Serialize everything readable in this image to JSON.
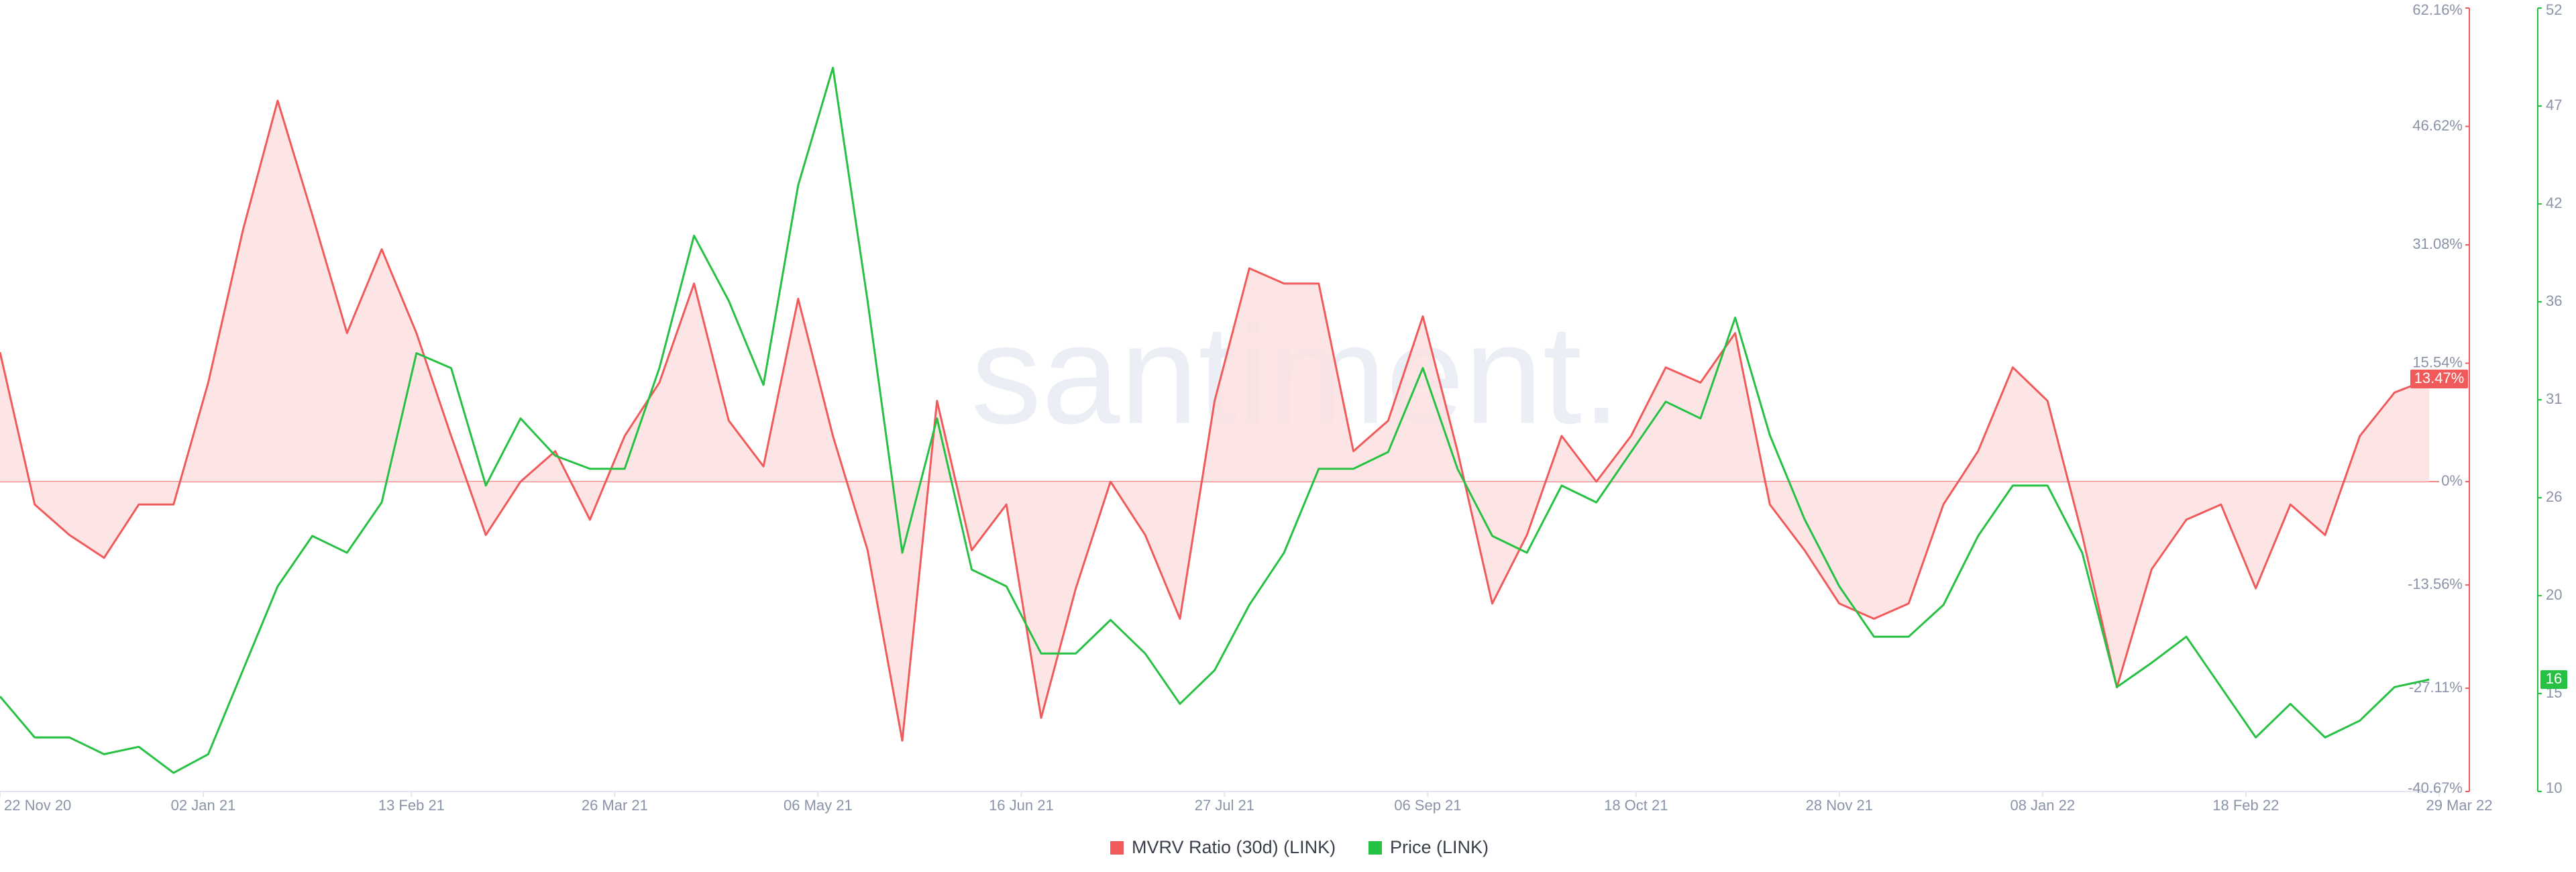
{
  "chart_data": {
    "type": "line",
    "watermark": "santiment.",
    "x": [
      "2020-11-22",
      "2020-11-29",
      "2020-12-06",
      "2020-12-13",
      "2020-12-20",
      "2020-12-27",
      "2021-01-03",
      "2021-01-10",
      "2021-01-17",
      "2021-01-24",
      "2021-01-31",
      "2021-02-07",
      "2021-02-14",
      "2021-02-21",
      "2021-02-28",
      "2021-03-07",
      "2021-03-14",
      "2021-03-21",
      "2021-03-28",
      "2021-04-04",
      "2021-04-11",
      "2021-04-18",
      "2021-04-25",
      "2021-05-02",
      "2021-05-09",
      "2021-05-16",
      "2021-05-23",
      "2021-05-30",
      "2021-06-06",
      "2021-06-13",
      "2021-06-20",
      "2021-06-27",
      "2021-07-04",
      "2021-07-11",
      "2021-07-18",
      "2021-07-25",
      "2021-08-01",
      "2021-08-08",
      "2021-08-15",
      "2021-08-22",
      "2021-08-29",
      "2021-09-05",
      "2021-09-12",
      "2021-09-19",
      "2021-09-26",
      "2021-10-03",
      "2021-10-10",
      "2021-10-17",
      "2021-10-24",
      "2021-10-31",
      "2021-11-07",
      "2021-11-14",
      "2021-11-21",
      "2021-11-28",
      "2021-12-05",
      "2021-12-12",
      "2021-12-19",
      "2021-12-26",
      "2022-01-02",
      "2022-01-09",
      "2022-01-16",
      "2022-01-23",
      "2022-01-30",
      "2022-02-06",
      "2022-02-13",
      "2022-02-20",
      "2022-02-27",
      "2022-03-06",
      "2022-03-13",
      "2022-03-20",
      "2022-03-27"
    ],
    "xlim": [
      "2020-11-22",
      "2022-03-29"
    ],
    "xticks": [
      {
        "value": "2020-11-22",
        "label": "22 Nov 20"
      },
      {
        "value": "2021-01-02",
        "label": "02 Jan 21"
      },
      {
        "value": "2021-02-13",
        "label": "13 Feb 21"
      },
      {
        "value": "2021-03-26",
        "label": "26 Mar 21"
      },
      {
        "value": "2021-05-06",
        "label": "06 May 21"
      },
      {
        "value": "2021-06-16",
        "label": "16 Jun 21"
      },
      {
        "value": "2021-07-27",
        "label": "27 Jul 21"
      },
      {
        "value": "2021-09-06",
        "label": "06 Sep 21"
      },
      {
        "value": "2021-10-18",
        "label": "18 Oct 21"
      },
      {
        "value": "2021-11-28",
        "label": "28 Nov 21"
      },
      {
        "value": "2022-01-08",
        "label": "08 Jan 22"
      },
      {
        "value": "2022-02-18",
        "label": "18 Feb 22"
      },
      {
        "value": "2022-03-29",
        "label": "29 Mar 22"
      }
    ],
    "ylim": [
      -40.67,
      62.16
    ],
    "yticks": [
      {
        "value": 62.16,
        "label": "62.16%"
      },
      {
        "value": 46.62,
        "label": "46.62%"
      },
      {
        "value": 31.08,
        "label": "31.08%"
      },
      {
        "value": 15.54,
        "label": "15.54%"
      },
      {
        "value": 0,
        "label": "0%"
      },
      {
        "value": -13.56,
        "label": "-13.56%"
      },
      {
        "value": -27.11,
        "label": "-27.11%"
      },
      {
        "value": -40.67,
        "label": "-40.67%"
      }
    ],
    "y2lim": [
      10,
      52
    ],
    "y2ticks": [
      52,
      {
        "value": 46.75,
        "label": "47"
      },
      {
        "value": 41.5,
        "label": "42"
      },
      {
        "value": 36.25,
        "label": "36"
      },
      31,
      {
        "value": 25.75,
        "label": "26"
      },
      {
        "value": 20.5,
        "label": "20"
      },
      {
        "value": 15.25,
        "label": "15"
      },
      10
    ],
    "series": [
      {
        "name": "MVRV Ratio (30d) (LINK)",
        "color": "#f05a5a",
        "fill": "#fde0e0",
        "axis": "y",
        "current": {
          "value": 13.47,
          "label": "13.47%"
        },
        "values": [
          17,
          -3,
          -7,
          -10,
          -3,
          -3,
          13,
          33,
          50,
          35,
          19.5,
          30.5,
          19.5,
          6,
          -7,
          0,
          4,
          -5,
          6,
          13,
          26,
          8,
          2,
          24,
          6,
          -9,
          -34,
          10.6,
          -9,
          -3,
          -31,
          -14,
          0,
          -7,
          -18,
          10.6,
          28,
          26,
          26,
          4,
          8,
          21.7,
          4,
          -16,
          -7,
          6,
          0,
          6,
          15,
          13,
          19.5,
          -3,
          -9,
          -16,
          -18,
          -16,
          -3,
          4,
          15,
          10.6,
          -7,
          -27,
          -11.5,
          -5,
          -3,
          -14,
          -3,
          -7,
          6,
          11.7,
          13.47
        ]
      },
      {
        "name": "Price (LINK)",
        "color": "#26c043",
        "axis": "y2",
        "current": 16,
        "values": [
          15.1,
          12.9,
          12.9,
          12,
          12.4,
          11,
          12,
          16.5,
          21,
          23.7,
          22.8,
          25.5,
          33.5,
          32.7,
          26.4,
          30,
          28,
          27.3,
          27.3,
          32.7,
          39.8,
          36.3,
          31.8,
          42.5,
          48.8,
          36.3,
          22.8,
          30,
          21.9,
          21,
          17.4,
          17.4,
          19.2,
          17.4,
          14.7,
          16.5,
          20,
          22.8,
          27.3,
          27.3,
          28.2,
          32.7,
          27.3,
          23.7,
          22.8,
          26.4,
          25.5,
          28.2,
          30.9,
          30,
          35.4,
          29.1,
          24.6,
          21,
          18.3,
          18.3,
          20,
          23.7,
          26.4,
          26.4,
          22.8,
          15.6,
          16.9,
          18.3,
          15.6,
          12.9,
          14.7,
          12.9,
          13.8,
          15.6,
          16
        ]
      }
    ]
  }
}
